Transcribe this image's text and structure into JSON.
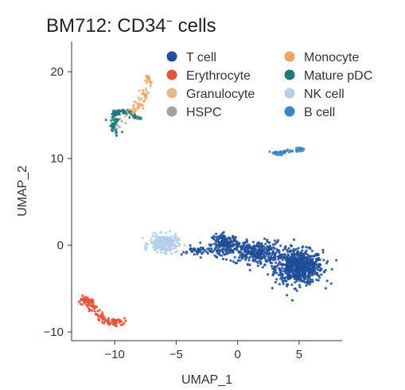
{
  "chart_data": {
    "type": "scatter",
    "title_main": "BM712: CD34",
    "title_sup": "−",
    "title_suffix": " cells",
    "xlabel": "UMAP_1",
    "ylabel": "UMAP_2",
    "xlim": [
      -13.5,
      8.5
    ],
    "ylim": [
      -11,
      23.5
    ],
    "xticks": [
      -10,
      -5,
      0,
      5
    ],
    "yticks": [
      -10,
      0,
      10,
      20
    ],
    "xtick_labels": [
      "−10",
      "−5",
      "0",
      "5"
    ],
    "ytick_labels": [
      "−10",
      "0",
      "10",
      "20"
    ],
    "grid": false,
    "legend_placement": "top-right",
    "series": [
      {
        "name": "T cell",
        "color": "#1f4e99",
        "clusters": [
          {
            "cx": 5.0,
            "cy": -2.5,
            "sx": 1.6,
            "sy": 1.6,
            "n": 700
          },
          {
            "cx": 1.5,
            "cy": -0.8,
            "sx": 1.8,
            "sy": 1.1,
            "n": 320
          },
          {
            "cx": -1.0,
            "cy": 0.2,
            "sx": 0.9,
            "sy": 0.9,
            "n": 160
          },
          {
            "cx": -3.0,
            "cy": -0.7,
            "sx": 1.3,
            "sy": 0.5,
            "n": 50
          }
        ]
      },
      {
        "name": "Erythrocyte",
        "color": "#e2533b",
        "path": [
          [
            -12.8,
            -6.3
          ],
          [
            -12.2,
            -6.2
          ],
          [
            -11.9,
            -7.0
          ],
          [
            -11.2,
            -8.0
          ],
          [
            -10.5,
            -9.0
          ],
          [
            -10.0,
            -8.9
          ],
          [
            -9.3,
            -8.6
          ]
        ],
        "n": 140,
        "jitter": 0.22
      },
      {
        "name": "Granulocyte",
        "color": "#e8b98a",
        "path": [
          [
            -9.2,
            14.5
          ],
          [
            -8.4,
            16.0
          ],
          [
            -7.9,
            17.2
          ],
          [
            -7.3,
            18.4
          ],
          [
            -7.2,
            19.4
          ]
        ],
        "n": 35,
        "jitter": 0.18
      },
      {
        "name": "HSPC",
        "color": "#a3a3a3",
        "path": [
          [
            -9.6,
            13.5
          ],
          [
            -9.2,
            14.2
          ]
        ],
        "n": 6,
        "jitter": 0.2
      },
      {
        "name": "Monocyte",
        "color": "#eda465",
        "path": [
          [
            -8.6,
            15.2
          ],
          [
            -7.9,
            16.2
          ],
          [
            -7.5,
            17.3
          ],
          [
            -7.2,
            18.3
          ],
          [
            -7.3,
            19.6
          ]
        ],
        "n": 40,
        "jitter": 0.15
      },
      {
        "name": "Mature pDC",
        "color": "#1f7a7a",
        "path": [
          [
            -9.8,
            12.8
          ],
          [
            -10.2,
            13.6
          ],
          [
            -9.8,
            14.6
          ],
          [
            -10.0,
            15.3
          ],
          [
            -9.3,
            15.5
          ],
          [
            -8.6,
            15.1
          ],
          [
            -8.1,
            14.8
          ]
        ],
        "n": 110,
        "jitter": 0.2
      },
      {
        "name": "NK cell",
        "color": "#b5cfe8",
        "clusters": [
          {
            "cx": -6.0,
            "cy": 0.2,
            "sx": 0.95,
            "sy": 0.8,
            "n": 260
          }
        ]
      },
      {
        "name": "B cell",
        "color": "#3f85c0",
        "path": [
          [
            2.9,
            10.6
          ],
          [
            3.8,
            10.7
          ],
          [
            4.6,
            10.9
          ],
          [
            5.3,
            11.1
          ]
        ],
        "n": 70,
        "jitter": 0.12
      }
    ]
  }
}
